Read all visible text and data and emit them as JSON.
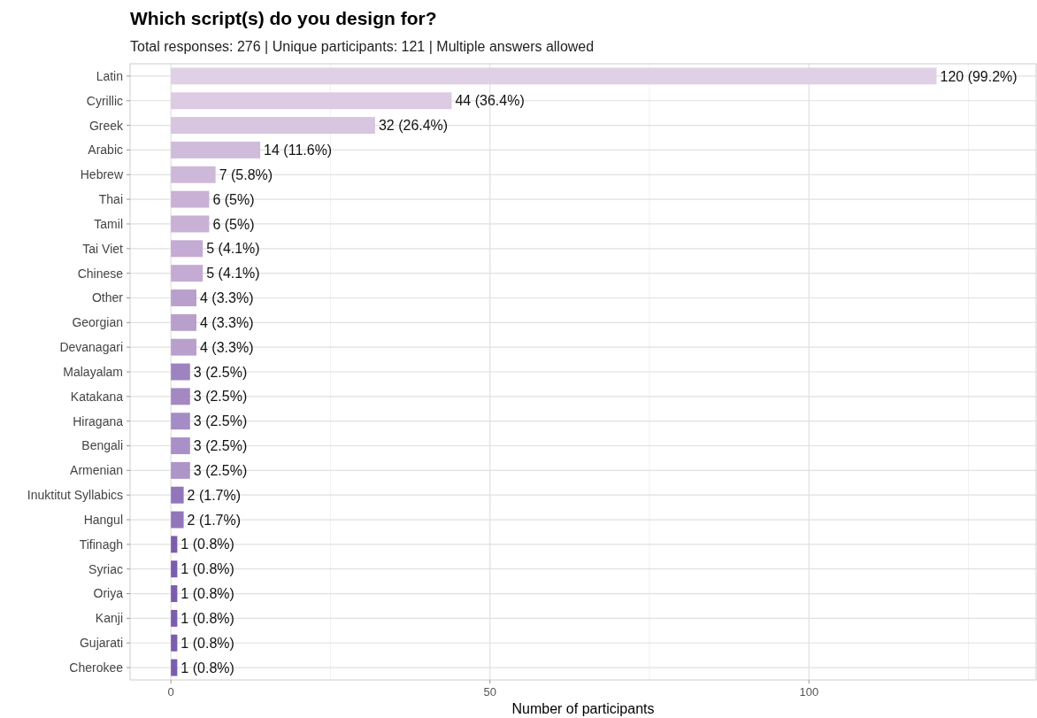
{
  "chart_data": {
    "type": "bar",
    "orientation": "horizontal",
    "title": "Which script(s) do you design for?",
    "subtitle": "Total responses: 276 | Unique participants: 121 | Multiple answers allowed",
    "xlabel": "Number of participants",
    "categories": [
      "Latin",
      "Cyrillic",
      "Greek",
      "Arabic",
      "Hebrew",
      "Thai",
      "Tamil",
      "Tai Viet",
      "Chinese",
      "Other",
      "Georgian",
      "Devanagari",
      "Malayalam",
      "Katakana",
      "Hiragana",
      "Bengali",
      "Armenian",
      "Inuktitut Syllabics",
      "Hangul",
      "Tifinagh",
      "Syriac",
      "Oriya",
      "Kanji",
      "Gujarati",
      "Cherokee"
    ],
    "values": [
      120,
      44,
      32,
      14,
      7,
      6,
      6,
      5,
      5,
      4,
      4,
      4,
      3,
      3,
      3,
      3,
      3,
      2,
      2,
      1,
      1,
      1,
      1,
      1,
      1
    ],
    "value_labels": [
      "120 (99.2%)",
      "44 (36.4%)",
      "32 (26.4%)",
      "14 (11.6%)",
      "7 (5.8%)",
      "6 (5%)",
      "6 (5%)",
      "5 (4.1%)",
      "5 (4.1%)",
      "4 (3.3%)",
      "4 (3.3%)",
      "4 (3.3%)",
      "3 (2.5%)",
      "3 (2.5%)",
      "3 (2.5%)",
      "3 (2.5%)",
      "3 (2.5%)",
      "2 (1.7%)",
      "2 (1.7%)",
      "1 (0.8%)",
      "1 (0.8%)",
      "1 (0.8%)",
      "1 (0.8%)",
      "1 (0.8%)",
      "1 (0.8%)"
    ],
    "colors": [
      "#dfd0e6",
      "#dccbe3",
      "#d8c5e0",
      "#d0bbdb",
      "#cdb8d9",
      "#c8b1d5",
      "#c8b1d5",
      "#c4abd3",
      "#c4abd3",
      "#b9a0cc",
      "#b9a0cc",
      "#b9a0cc",
      "#9f82c0",
      "#a388c2",
      "#a68cc4",
      "#a990c6",
      "#ad95c8",
      "#9276ba",
      "#9276ba",
      "#7b5cad",
      "#7b5cad",
      "#7b5cad",
      "#7b5cad",
      "#7b5cad",
      "#7b5cad"
    ],
    "xlim": [
      -6.4,
      135.6
    ],
    "xticks": [
      0,
      {
        "value": 25,
        "label": null
      },
      50,
      {
        "value": 75,
        "label": null
      },
      100,
      {
        "value": 125,
        "label": null
      }
    ],
    "grid": true
  }
}
